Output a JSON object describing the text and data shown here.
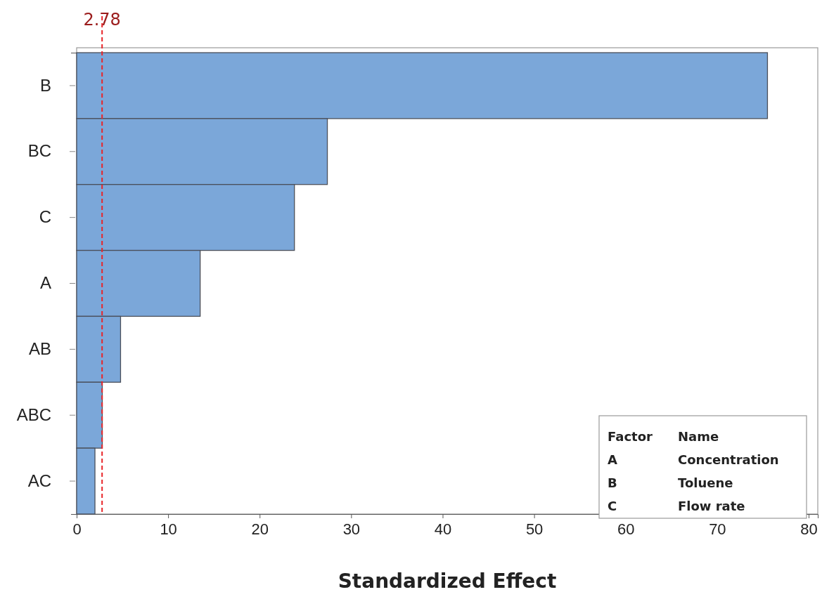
{
  "chart_data": {
    "type": "bar",
    "orientation": "horizontal",
    "xlabel": "Standardized Effect",
    "categories": [
      "B",
      "BC",
      "C",
      "A",
      "AB",
      "ABC",
      "AC"
    ],
    "values": [
      75.5,
      27.4,
      23.8,
      13.5,
      4.8,
      2.8,
      2.0
    ],
    "color": "#7ba7d9",
    "xlim": [
      0,
      81
    ],
    "xticks": [
      0,
      10,
      20,
      30,
      40,
      50,
      60,
      70,
      80
    ],
    "ref_lines": [
      {
        "axis": "x",
        "value": 2.78,
        "label": "2.78",
        "color": "#e8262a",
        "line_style": "dashed"
      }
    ],
    "annotations": [
      "Factor",
      "Name",
      "A",
      "Concentration",
      "B",
      "Toluene",
      "C",
      "Flow rate"
    ],
    "grid": false
  }
}
